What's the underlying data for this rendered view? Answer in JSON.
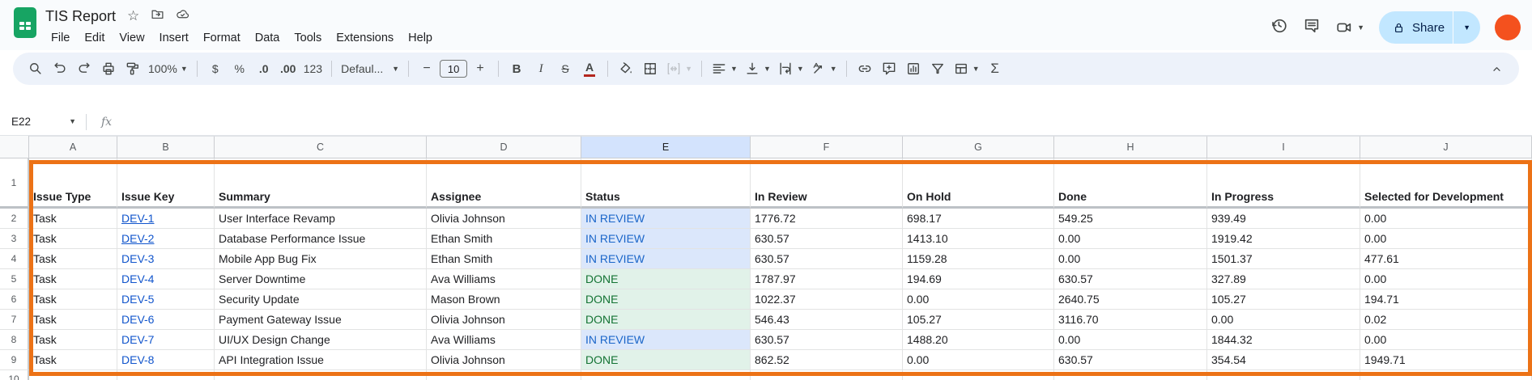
{
  "titlebar": {
    "doc_title": "TIS Report",
    "menu_items": [
      "File",
      "Edit",
      "View",
      "Insert",
      "Format",
      "Data",
      "Tools",
      "Extensions",
      "Help"
    ],
    "share_label": "Share"
  },
  "toolbar": {
    "zoom_value": "100%",
    "currency_label": "$",
    "percent_label": "%",
    "decrease_decimal_label": ".0",
    "increase_decimal_label": ".00",
    "number_format_label": "123",
    "font_family_value": "Defaul...",
    "decrease_font_label": "−",
    "font_size_value": "10",
    "increase_font_label": "+",
    "bold_label": "B",
    "italic_label": "I",
    "strikethrough_label": "S",
    "text_color_label": "A",
    "functions_label": "Σ"
  },
  "formula_bar": {
    "cell_reference": "E22",
    "fx_label": "fx"
  },
  "grid": {
    "column_letters": [
      "A",
      "B",
      "C",
      "D",
      "E",
      "F",
      "G",
      "H",
      "I",
      "J"
    ],
    "selected_column": "E",
    "row_numbers": [
      "1",
      "2",
      "3",
      "4",
      "5",
      "6",
      "7",
      "8",
      "9",
      "10"
    ]
  },
  "table": {
    "headers": [
      "Issue Type",
      "Issue Key",
      "Summary",
      "Assignee",
      "Status",
      "In Review",
      "On Hold",
      "Done",
      "In Progress",
      "Selected for Development"
    ],
    "rows": [
      {
        "issue_type": "Task",
        "issue_key": "DEV-1",
        "key_underlined": true,
        "summary": "User Interface Revamp",
        "assignee": "Olivia Johnson",
        "status": "IN REVIEW",
        "in_review": "1776.72",
        "on_hold": "698.17",
        "done": "549.25",
        "in_progress": "939.49",
        "selected_for_development": "0.00"
      },
      {
        "issue_type": "Task",
        "issue_key": "DEV-2",
        "key_underlined": true,
        "summary": "Database Performance Issue",
        "assignee": "Ethan Smith",
        "status": "IN REVIEW",
        "in_review": "630.57",
        "on_hold": "1413.10",
        "done": "0.00",
        "in_progress": "1919.42",
        "selected_for_development": "0.00"
      },
      {
        "issue_type": "Task",
        "issue_key": "DEV-3",
        "key_underlined": false,
        "summary": "Mobile App Bug Fix",
        "assignee": "Ethan Smith",
        "status": "IN REVIEW",
        "in_review": "630.57",
        "on_hold": "1159.28",
        "done": "0.00",
        "in_progress": "1501.37",
        "selected_for_development": "477.61"
      },
      {
        "issue_type": "Task",
        "issue_key": "DEV-4",
        "key_underlined": false,
        "summary": "Server Downtime",
        "assignee": "Ava Williams",
        "status": "DONE",
        "in_review": "1787.97",
        "on_hold": "194.69",
        "done": "630.57",
        "in_progress": "327.89",
        "selected_for_development": "0.00"
      },
      {
        "issue_type": "Task",
        "issue_key": "DEV-5",
        "key_underlined": false,
        "summary": "Security Update",
        "assignee": "Mason Brown",
        "status": "DONE",
        "in_review": "1022.37",
        "on_hold": "0.00",
        "done": "2640.75",
        "in_progress": "105.27",
        "selected_for_development": "194.71"
      },
      {
        "issue_type": "Task",
        "issue_key": "DEV-6",
        "key_underlined": false,
        "summary": "Payment Gateway Issue",
        "assignee": "Olivia Johnson",
        "status": "DONE",
        "in_review": "546.43",
        "on_hold": "105.27",
        "done": "3116.70",
        "in_progress": "0.00",
        "selected_for_development": "0.02"
      },
      {
        "issue_type": "Task",
        "issue_key": "DEV-7",
        "key_underlined": false,
        "summary": "UI/UX Design Change",
        "assignee": "Ava Williams",
        "status": "IN REVIEW",
        "in_review": "630.57",
        "on_hold": "1488.20",
        "done": "0.00",
        "in_progress": "1844.32",
        "selected_for_development": "0.00"
      },
      {
        "issue_type": "Task",
        "issue_key": "DEV-8",
        "key_underlined": false,
        "summary": "API Integration Issue",
        "assignee": "Olivia Johnson",
        "status": "DONE",
        "in_review": "862.52",
        "on_hold": "0.00",
        "done": "630.57",
        "in_progress": "354.54",
        "selected_for_development": "1949.71"
      }
    ]
  },
  "colors": {
    "accent_orange": "#ec7216",
    "link_blue": "#1155cc",
    "in_review_text": "#1b66c9",
    "in_review_bg": "#dbe7fb",
    "done_text": "#137333",
    "done_bg": "#e1f2e9",
    "share_bg": "#c2e7ff",
    "avatar_orange": "#f4511e",
    "selected_column_bg": "#d3e3fd",
    "logo_green": "#17a463"
  }
}
